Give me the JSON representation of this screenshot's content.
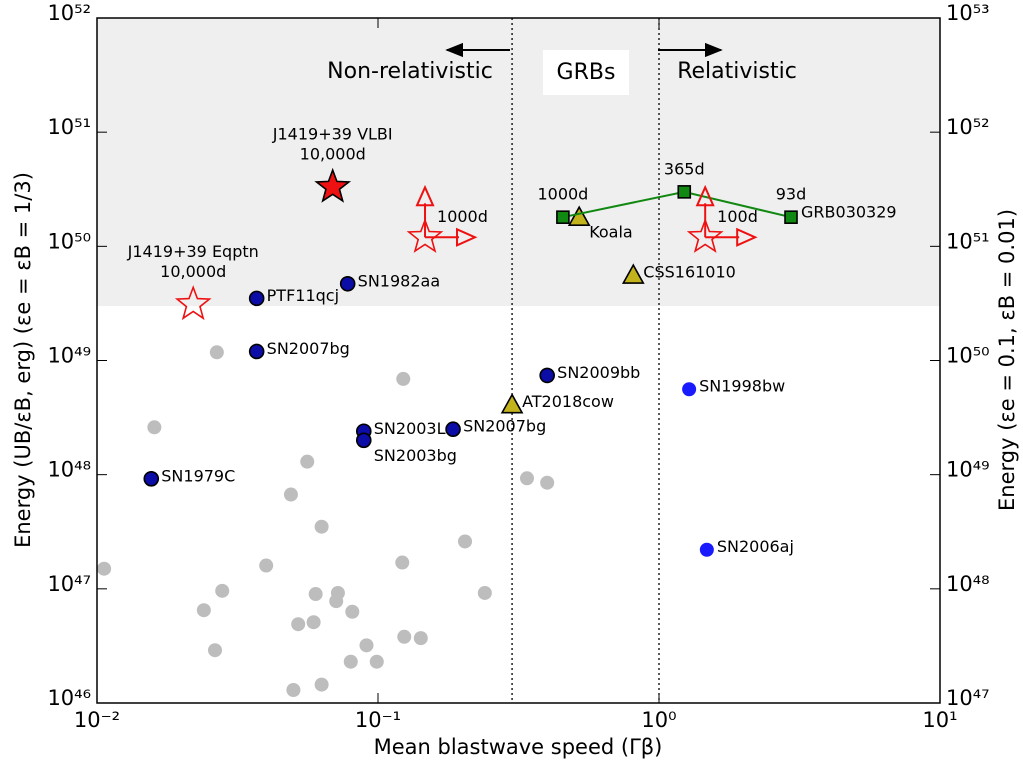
{
  "chart_data": {
    "type": "scatter",
    "xlabel": "Mean blastwave speed (Γβ)",
    "ylabel": "Energy (UB/εB, erg) (εe = εB = 1/3)",
    "y2label": "Energy (εe = 0.1, εB = 0.01)",
    "log_x": true,
    "log_y": true,
    "xlim": [
      0.01,
      10
    ],
    "xticks": [
      {
        "value": 0.01,
        "label": "10⁻²"
      },
      {
        "value": 0.1,
        "label": "10⁻¹"
      },
      {
        "value": 1,
        "label": "10⁰"
      },
      {
        "value": 10,
        "label": "10¹"
      }
    ],
    "ylim": [
      1e+46,
      1e+52
    ],
    "yticks": [
      {
        "value": 1e+46,
        "label": "10⁴⁶"
      },
      {
        "value": 1e+47,
        "label": "10⁴⁷"
      },
      {
        "value": 1e+48,
        "label": "10⁴⁸"
      },
      {
        "value": 1e+49,
        "label": "10⁴⁹"
      },
      {
        "value": 1e+50,
        "label": "10⁵⁰"
      },
      {
        "value": 1e+51,
        "label": "10⁵¹"
      },
      {
        "value": 1e+52,
        "label": "10⁵²"
      }
    ],
    "y2lim": [
      1e+47,
      1e+53
    ],
    "y2ticks": [
      {
        "value": 1e+47,
        "label": "10⁴⁷"
      },
      {
        "value": 1e+48,
        "label": "10⁴⁸"
      },
      {
        "value": 1e+49,
        "label": "10⁴⁹"
      },
      {
        "value": 1e+50,
        "label": "10⁵⁰"
      },
      {
        "value": 1e+51,
        "label": "10⁵¹"
      },
      {
        "value": 1e+52,
        "label": "10⁵²"
      },
      {
        "value": 1e+53,
        "label": "10⁵³"
      }
    ],
    "shaded_region": {
      "y": [
        3e+49,
        1e+52
      ],
      "color": "#efefef"
    },
    "vlines": [
      0.3,
      1
    ],
    "annotations": {
      "left": "Non-relativistic",
      "middle": "GRBs",
      "right": "Relativistic"
    },
    "series": [
      {
        "marker": "circle",
        "color": "#bdbdbd",
        "x": [
          0.0267,
          0.123,
          0.016,
          0.056,
          0.339,
          0.4,
          0.049,
          0.063,
          0.204,
          0.04,
          0.122,
          0.0106,
          0.0279,
          0.06,
          0.072,
          0.071,
          0.24,
          0.024,
          0.081,
          0.052,
          0.059,
          0.091,
          0.124,
          0.142,
          0.0263,
          0.08,
          0.099,
          0.063,
          0.05
        ],
        "y": [
          1.18e+49,
          6.9e+48,
          2.6e+48,
          1.3e+48,
          9.3e+47,
          8.5e+47,
          6.7e+47,
          3.5e+47,
          2.6e+47,
          1.6e+47,
          1.7e+47,
          1.5e+47,
          9.6e+46,
          9e+46,
          9.2e+46,
          7.8e+46,
          9.2e+46,
          6.5e+46,
          6.3e+46,
          4.9e+46,
          5.1e+46,
          3.2e+46,
          3.8e+46,
          3.7e+46,
          2.9e+46,
          2.3e+46,
          2.3e+46,
          1.45e+46,
          1.3e+46
        ]
      },
      {
        "marker": "circle",
        "color": "#0c0ca6",
        "edge": "#000000",
        "x": [
          0.037,
          0.078,
          0.037,
          0.089,
          0.089,
          0.185,
          0.0156,
          0.4
        ],
        "y": [
          3.5e+49,
          4.7e+49,
          1.2e+49,
          2.4e+48,
          2e+48,
          2.5e+48,
          9.2e+47,
          7.4e+48
        ],
        "labels": [
          "PTF11qcj",
          "SN1982aa",
          "SN2007bg",
          "SN2003L",
          "SN2003bg",
          "SN2007bg",
          "SN1979C",
          "SN2009bb"
        ]
      },
      {
        "marker": "circle",
        "color": "#1a1aff",
        "x": [
          1.28,
          1.48
        ],
        "y": [
          5.6e+48,
          2.2e+47
        ],
        "labels": [
          "SN1998bw",
          "SN2006aj"
        ]
      },
      {
        "marker": "triangle",
        "color": "#c2b31c",
        "edge": "#000000",
        "x": [
          0.3,
          0.52,
          0.81
        ],
        "y": [
          4.1e+48,
          1.8e+50,
          5.6e+49
        ],
        "labels": [
          "AT2018cow",
          "Koala",
          "CSS161010"
        ]
      },
      {
        "marker": "square",
        "color": "#118811",
        "edge": "#000000",
        "line": true,
        "x": [
          0.455,
          1.23,
          2.95
        ],
        "y": [
          1.8e+50,
          3e+50,
          1.8e+50
        ],
        "labels": [
          "1000d",
          "365d",
          "93d"
        ],
        "label": "GRB030329"
      },
      {
        "marker": "star",
        "color": "#ee1111",
        "edge": "#000000",
        "x": [
          0.069
        ],
        "y": [
          3.3e+50
        ],
        "labels": [
          "J1419+39 VLBI"
        ],
        "sublabels": [
          "10,000d"
        ]
      },
      {
        "marker": "star",
        "color": "none",
        "edge": "#ee1111",
        "x": [
          0.022
        ],
        "y": [
          3.1e+49
        ],
        "labels": [
          "J1419+39 Eqptn"
        ],
        "sublabels": [
          "10,000d"
        ]
      },
      {
        "marker": "star",
        "color": "none",
        "edge": "#ee1111",
        "limits": "lower",
        "x": [
          0.147,
          1.46
        ],
        "y": [
          1.2e+50,
          1.2e+50
        ],
        "labels": [
          "1000d",
          "100d"
        ]
      }
    ]
  }
}
